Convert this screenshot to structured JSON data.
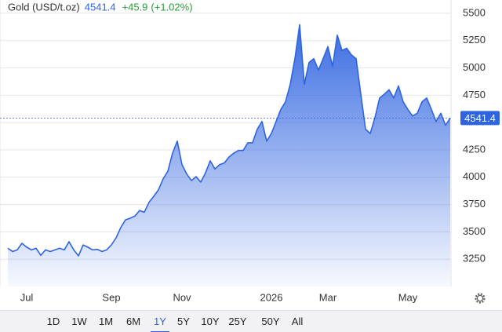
{
  "header": {
    "title": "Gold (USD/t.oz)",
    "change": "+45.9",
    "change_pct": "(+1.02%)"
  },
  "chart_data": {
    "type": "area",
    "color": "#2f64e0",
    "grid": true,
    "categories": [
      null,
      null,
      null,
      null,
      "Jul",
      null,
      null,
      null,
      null,
      null,
      null,
      null,
      null,
      null,
      null,
      null,
      null,
      null,
      null,
      null,
      null,
      null,
      "Sep",
      null,
      null,
      null,
      null,
      null,
      null,
      null,
      null,
      null,
      null,
      null,
      null,
      null,
      null,
      "Nov",
      null,
      null,
      null,
      null,
      null,
      null,
      null,
      null,
      null,
      null,
      null,
      null,
      null,
      null,
      null,
      null,
      null,
      null,
      "2026",
      null,
      null,
      null,
      null,
      null,
      null,
      null,
      null,
      null,
      null,
      null,
      "Mar",
      null,
      null,
      null,
      null,
      null,
      null,
      null,
      null,
      null,
      null,
      null,
      null,
      null,
      null,
      null,
      null,
      "May",
      null,
      null,
      null,
      null,
      null,
      null,
      null,
      null,
      null
    ],
    "values": [
      3350,
      3320,
      3335,
      3395,
      3360,
      3335,
      3350,
      3285,
      3335,
      3320,
      3335,
      3350,
      3335,
      3410,
      3335,
      3280,
      3380,
      3360,
      3335,
      3340,
      3320,
      3335,
      3380,
      3445,
      3540,
      3610,
      3625,
      3645,
      3695,
      3680,
      3770,
      3825,
      3885,
      3985,
      4055,
      4220,
      4330,
      4115,
      4030,
      3970,
      4005,
      3955,
      4040,
      4150,
      4075,
      4115,
      4130,
      4185,
      4220,
      4245,
      4245,
      4315,
      4315,
      4440,
      4510,
      4330,
      4400,
      4510,
      4620,
      4690,
      4850,
      5085,
      5395,
      4850,
      5050,
      5085,
      4980,
      5085,
      5195,
      5015,
      5300,
      5160,
      5180,
      5120,
      5085,
      4760,
      4440,
      4400,
      4545,
      4725,
      4760,
      4800,
      4725,
      4835,
      4690,
      4620,
      4560,
      4585,
      4690,
      4725,
      4620,
      4510,
      4585,
      4475,
      4541.4
    ],
    "ylim": [
      3000,
      5600
    ],
    "yticks": [
      3250,
      3500,
      3750,
      4000,
      4250,
      4500,
      4750,
      5000,
      5250,
      5500
    ]
  },
  "ranges": [
    "1D",
    "1W",
    "1M",
    "6M",
    "1Y",
    "5Y",
    "10Y",
    "25Y",
    "50Y",
    "All"
  ],
  "selected_range_index": 4
}
